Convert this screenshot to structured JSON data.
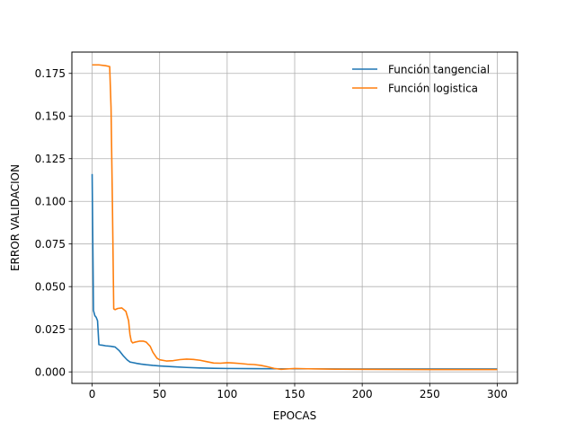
{
  "chart_data": {
    "type": "line",
    "title": "",
    "xlabel": "EPOCAS",
    "ylabel": "ERROR VALIDACION",
    "xlim": [
      -15,
      315
    ],
    "ylim": [
      -0.00675,
      0.1875
    ],
    "xticks": [
      0,
      50,
      100,
      150,
      200,
      250,
      300
    ],
    "xtick_labels": [
      "0",
      "50",
      "100",
      "150",
      "200",
      "250",
      "300"
    ],
    "yticks": [
      0.0,
      0.025,
      0.05,
      0.075,
      0.1,
      0.125,
      0.15,
      0.175
    ],
    "ytick_labels": [
      "0.000",
      "0.025",
      "0.050",
      "0.075",
      "0.100",
      "0.125",
      "0.150",
      "0.175"
    ],
    "grid": true,
    "legend_position": "top-right",
    "series": [
      {
        "name": "Función tangencial",
        "color": "#1f77b4",
        "x": [
          0,
          1,
          2,
          3,
          4,
          5,
          6,
          8,
          10,
          14,
          17,
          20,
          23,
          26,
          28,
          30,
          33,
          36,
          40,
          45,
          50,
          60,
          70,
          80,
          90,
          100,
          120,
          140,
          160,
          200,
          250,
          300
        ],
        "y": [
          0.116,
          0.036,
          0.033,
          0.032,
          0.03,
          0.016,
          0.0158,
          0.0156,
          0.0153,
          0.015,
          0.0146,
          0.0125,
          0.0095,
          0.007,
          0.0058,
          0.0055,
          0.005,
          0.0046,
          0.0042,
          0.0038,
          0.0035,
          0.003,
          0.0026,
          0.0023,
          0.0021,
          0.002,
          0.0019,
          0.0018,
          0.0018,
          0.0017,
          0.0017,
          0.0017
        ]
      },
      {
        "name": "Función logistica",
        "color": "#ff7f0e",
        "x": [
          0,
          5,
          10,
          13,
          14,
          15,
          16,
          17,
          19,
          22,
          25,
          27,
          28,
          29,
          30,
          32,
          35,
          38,
          40,
          43,
          45,
          48,
          50,
          55,
          60,
          65,
          70,
          75,
          80,
          85,
          90,
          95,
          100,
          105,
          110,
          115,
          120,
          125,
          130,
          135,
          140,
          150,
          160,
          170,
          180,
          200,
          250,
          300
        ],
        "y": [
          0.18,
          0.18,
          0.1795,
          0.179,
          0.155,
          0.1,
          0.037,
          0.0365,
          0.0372,
          0.0375,
          0.0355,
          0.03,
          0.022,
          0.018,
          0.017,
          0.0175,
          0.018,
          0.018,
          0.0175,
          0.015,
          0.0115,
          0.008,
          0.0071,
          0.0064,
          0.0066,
          0.0072,
          0.0075,
          0.0073,
          0.0068,
          0.006,
          0.0052,
          0.0051,
          0.0054,
          0.0052,
          0.0049,
          0.0045,
          0.0043,
          0.0038,
          0.003,
          0.002,
          0.0015,
          0.002,
          0.0018,
          0.0017,
          0.0016,
          0.0015,
          0.0014,
          0.0014
        ]
      }
    ]
  }
}
